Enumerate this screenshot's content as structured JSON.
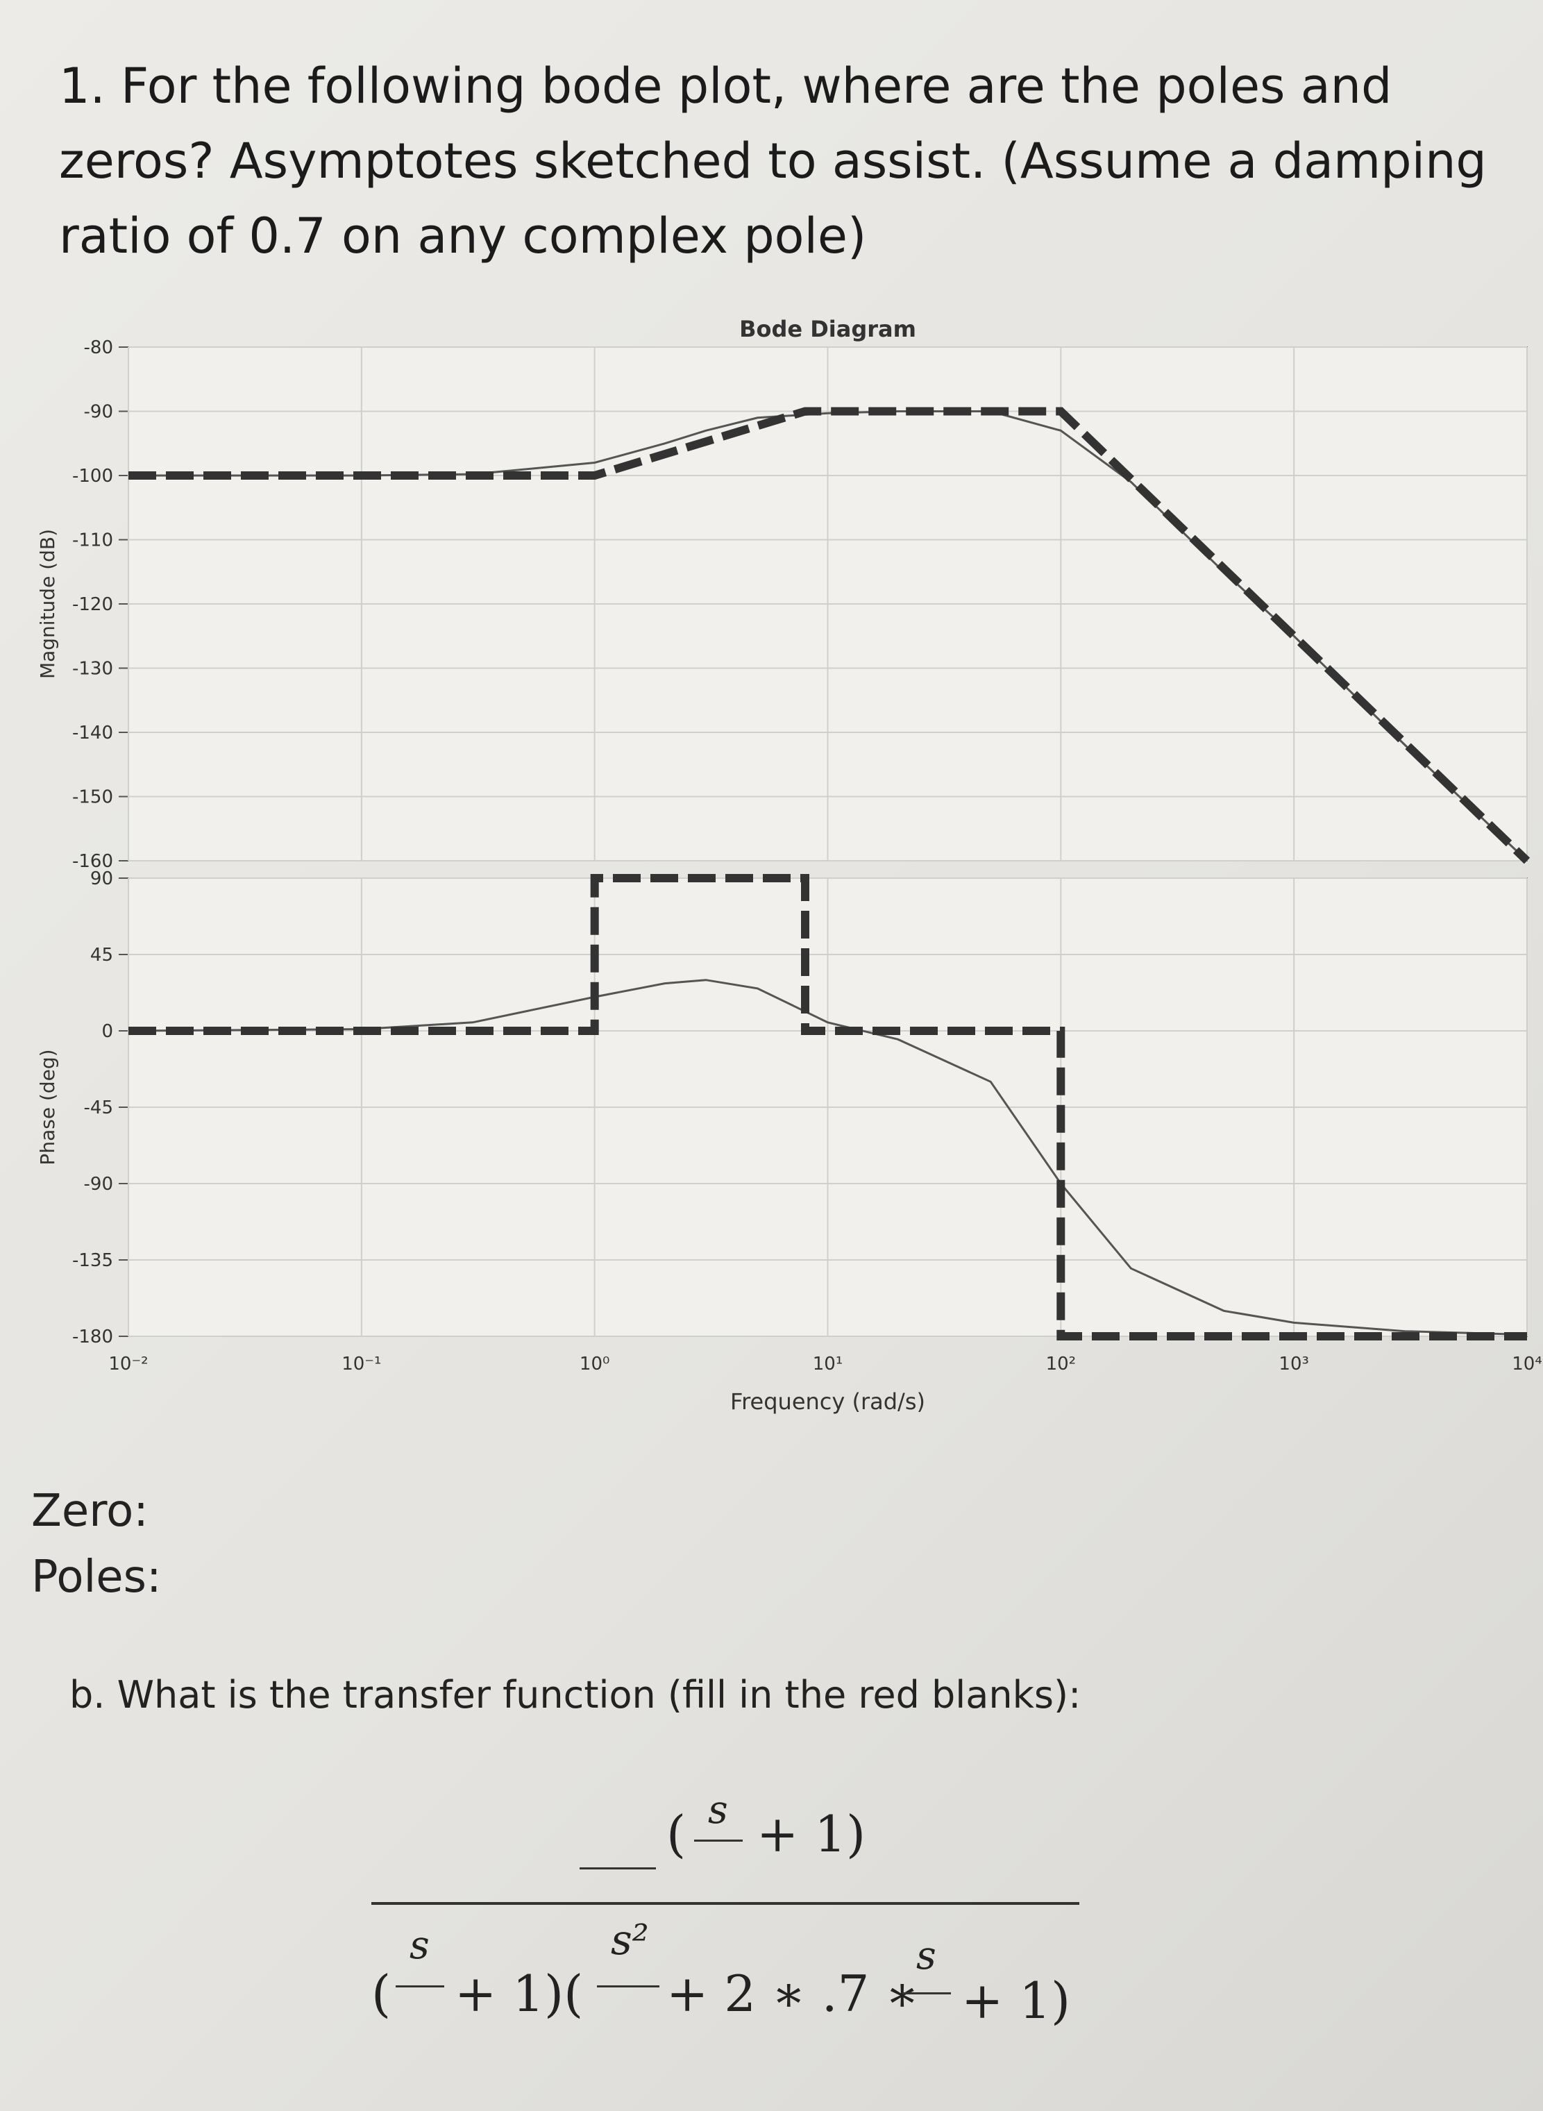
{
  "question": "1. For the following bode plot, where are the poles and zeros? Asymptotes sketched to assist. (Assume a damping ratio of 0.7 on any complex pole)",
  "chart_data": [
    {
      "type": "line",
      "title": "Bode Diagram",
      "ylabel": "Magnitude (dB)",
      "xscale": "log",
      "grid": true,
      "xlim": [
        0.01,
        10000
      ],
      "ylim": [
        -160,
        -80
      ],
      "yticks": [
        -80,
        -90,
        -100,
        -110,
        -120,
        -130,
        -140,
        -150,
        -160
      ],
      "series": [
        {
          "color": "#555555",
          "style": "solid",
          "x": [
            0.01,
            0.1,
            0.3,
            1,
            2,
            3,
            5,
            10,
            20,
            50,
            100,
            200,
            500,
            1000,
            3000,
            10000
          ],
          "values": [
            -100,
            -100,
            -99.8,
            -98,
            -95,
            -93,
            -91,
            -90.3,
            -90,
            -90,
            -93,
            -101,
            -115,
            -125,
            -142,
            -160
          ]
        },
        {
          "color": "#333333",
          "style": "dashed",
          "x": [
            0.01,
            1,
            8,
            100,
            10000
          ],
          "values": [
            -100,
            -100,
            -90,
            -90,
            -160
          ]
        }
      ]
    },
    {
      "type": "line",
      "ylabel": "Phase (deg)",
      "xlabel": "Frequency (rad/s)",
      "xscale": "log",
      "grid": true,
      "xlim": [
        0.01,
        10000
      ],
      "ylim": [
        -180,
        90
      ],
      "xticks": [
        {
          "value": 0.01,
          "label": "10⁻²"
        },
        {
          "value": 0.1,
          "label": "10⁻¹"
        },
        {
          "value": 1,
          "label": "10⁰"
        },
        {
          "value": 10,
          "label": "10¹"
        },
        {
          "value": 100,
          "label": "10²"
        },
        {
          "value": 1000,
          "label": "10³"
        },
        {
          "value": 10000,
          "label": "10⁴"
        }
      ],
      "yticks": [
        90,
        45,
        0,
        -45,
        -90,
        -135,
        -180
      ],
      "series": [
        {
          "color": "#555555",
          "style": "solid",
          "x": [
            0.01,
            0.1,
            0.3,
            1,
            2,
            3,
            5,
            10,
            20,
            50,
            100,
            200,
            500,
            1000,
            3000,
            10000
          ],
          "values": [
            0,
            1,
            5,
            20,
            28,
            30,
            25,
            5,
            -5,
            -30,
            -90,
            -140,
            -165,
            -172,
            -177,
            -179
          ]
        },
        {
          "color": "#333333",
          "style": "dashed",
          "x": [
            0.01,
            1,
            1,
            8,
            8,
            100,
            100,
            10000
          ],
          "values": [
            0,
            0,
            90,
            90,
            0,
            0,
            -180,
            -180
          ]
        }
      ]
    }
  ],
  "answers": {
    "zero": "Zero:",
    "poles": "Poles:"
  },
  "part_b": "b. What is the transfer function (fill in the red blanks):",
  "formula": {
    "num_open": "(",
    "num_s": "s",
    "num_close": "+ 1)",
    "den_open": "(",
    "den_s1": "s",
    "den_mid": "+ 1)(",
    "den_s2": "s²",
    "den_mid2": "+ 2 ∗ .7 ∗",
    "den_s3": "s",
    "den_close": "+ 1)"
  }
}
